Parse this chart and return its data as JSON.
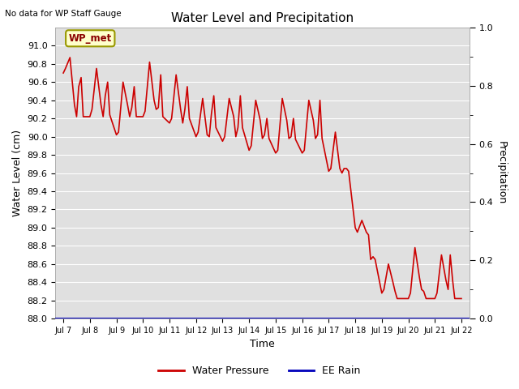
{
  "title": "Water Level and Precipitation",
  "top_left_text": "No data for WP Staff Gauge",
  "xlabel": "Time",
  "ylabel_left": "Water Level (cm)",
  "ylabel_right": "Precipitation",
  "legend_label1": "Water Pressure",
  "legend_label2": "EE Rain",
  "annotation_box": "WP_met",
  "ylim_left": [
    88.0,
    91.2
  ],
  "ylim_right": [
    0.0,
    1.0
  ],
  "yticks_left": [
    88.0,
    88.2,
    88.4,
    88.6,
    88.8,
    89.0,
    89.2,
    89.4,
    89.6,
    89.8,
    90.0,
    90.2,
    90.4,
    90.6,
    90.8,
    91.0
  ],
  "yticks_right_labeled": [
    0.0,
    0.2,
    0.4,
    0.6,
    0.8,
    1.0
  ],
  "yticks_right_minor": [
    0.1,
    0.3,
    0.5,
    0.7,
    0.9
  ],
  "xtick_labels": [
    "Jul 7",
    "Jul 8",
    "Jul 9",
    "Jul 10",
    "Jul 11",
    "Jul 12",
    "Jul 13",
    "Jul 14",
    "Jul 15",
    "Jul 16",
    "Jul 17",
    "Jul 18",
    "Jul 19",
    "Jul 20",
    "Jul 21",
    "Jul 22"
  ],
  "plot_bg_color": "#e0e0e0",
  "fig_bg_color": "#ffffff",
  "line_color_water": "#cc0000",
  "line_color_rain": "#0000bb",
  "water_x": [
    0.0,
    0.08,
    0.25,
    0.42,
    0.5,
    0.58,
    0.67,
    0.75,
    1.0,
    1.08,
    1.25,
    1.42,
    1.5,
    1.58,
    1.67,
    1.75,
    2.0,
    2.08,
    2.25,
    2.42,
    2.5,
    2.58,
    2.67,
    2.75,
    3.0,
    3.08,
    3.25,
    3.42,
    3.5,
    3.58,
    3.67,
    3.75,
    4.0,
    4.08,
    4.25,
    4.42,
    4.5,
    4.58,
    4.67,
    4.75,
    5.0,
    5.08,
    5.25,
    5.42,
    5.5,
    5.58,
    5.67,
    5.75,
    6.0,
    6.08,
    6.25,
    6.42,
    6.5,
    6.58,
    6.67,
    6.75,
    7.0,
    7.08,
    7.25,
    7.42,
    7.5,
    7.58,
    7.67,
    7.75,
    8.0,
    8.08,
    8.25,
    8.42,
    8.5,
    8.58,
    8.67,
    8.75,
    9.0,
    9.08,
    9.25,
    9.42,
    9.5,
    9.58,
    9.67,
    9.75,
    10.0,
    10.08,
    10.25,
    10.42,
    10.5,
    10.58,
    10.67,
    10.75,
    11.0,
    11.08,
    11.25,
    11.42,
    11.5,
    11.58,
    11.67,
    11.75,
    12.0,
    12.08,
    12.25,
    12.42,
    12.5,
    12.58,
    12.67,
    12.75,
    13.0,
    13.08,
    13.25,
    13.42,
    13.5,
    13.58,
    13.67,
    13.75,
    14.0,
    14.08,
    14.25,
    14.42,
    14.5,
    14.58,
    14.67,
    14.75,
    15.0
  ],
  "water_y": [
    90.7,
    90.75,
    90.87,
    90.35,
    90.22,
    90.55,
    90.65,
    90.22,
    90.22,
    90.3,
    90.75,
    90.35,
    90.22,
    90.45,
    90.6,
    90.24,
    90.02,
    90.05,
    90.6,
    90.35,
    90.22,
    90.32,
    90.55,
    90.22,
    90.22,
    90.28,
    90.82,
    90.4,
    90.3,
    90.32,
    90.68,
    90.22,
    90.15,
    90.2,
    90.68,
    90.3,
    90.15,
    90.3,
    90.55,
    90.2,
    90.0,
    90.05,
    90.42,
    90.02,
    90.0,
    90.25,
    90.45,
    90.1,
    89.95,
    90.0,
    90.42,
    90.22,
    90.0,
    90.1,
    90.45,
    90.1,
    89.85,
    89.9,
    90.4,
    90.18,
    89.98,
    90.02,
    90.2,
    89.98,
    89.82,
    89.85,
    90.42,
    90.18,
    89.98,
    90.0,
    90.2,
    89.97,
    89.82,
    89.85,
    90.4,
    90.18,
    89.98,
    90.02,
    90.4,
    89.98,
    89.62,
    89.65,
    90.05,
    89.65,
    89.6,
    89.65,
    89.65,
    89.62,
    89.0,
    88.95,
    89.08,
    88.95,
    88.92,
    88.65,
    88.68,
    88.65,
    88.28,
    88.32,
    88.6,
    88.4,
    88.3,
    88.22,
    88.22,
    88.22,
    88.22,
    88.28,
    88.78,
    88.45,
    88.32,
    88.3,
    88.22,
    88.22,
    88.22,
    88.28,
    88.7,
    88.42,
    88.32,
    88.7,
    88.42,
    88.22,
    88.22
  ]
}
